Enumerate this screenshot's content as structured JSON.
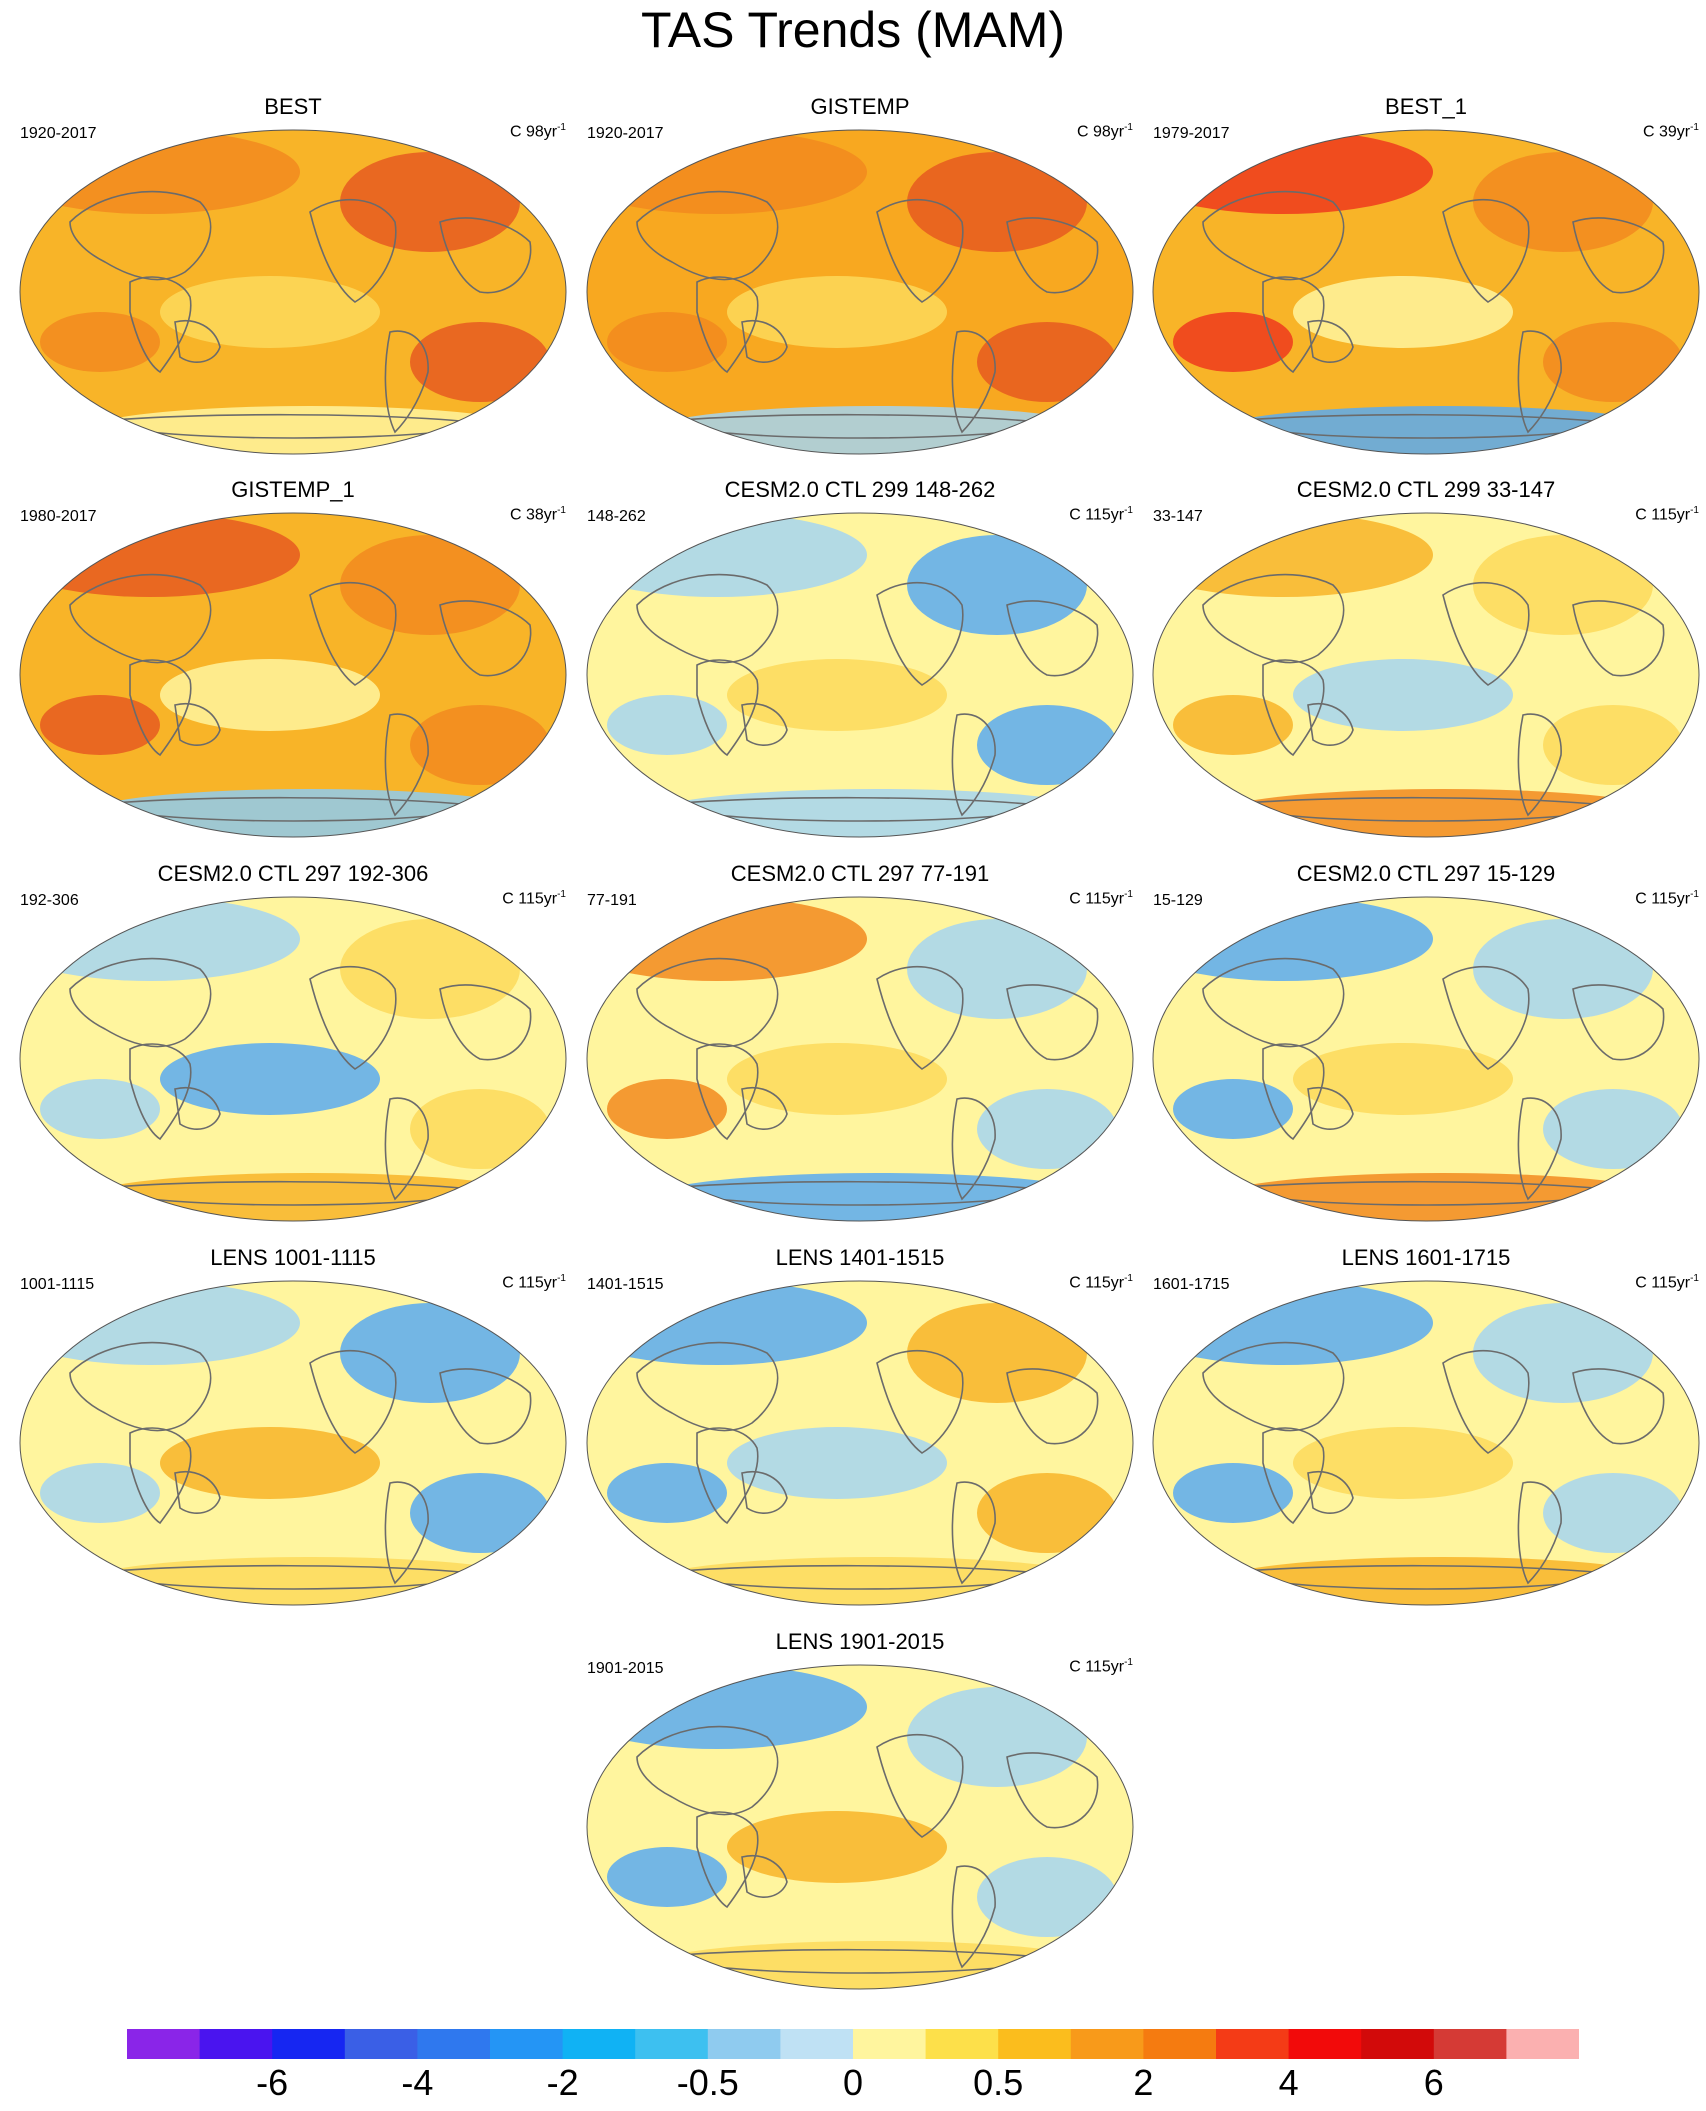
{
  "title": "TAS Trends (MAM)",
  "panels": [
    {
      "title": "BEST",
      "left_label": "1920-2017",
      "right_unit": "C 98yr",
      "right_exp": "-1",
      "fill": "#f8b428",
      "patches": [
        "#f28a1e",
        "#e65a20",
        "#fdd95a",
        "#fff59e"
      ]
    },
    {
      "title": "GISTEMP",
      "left_label": "1920-2017",
      "right_unit": "C 98yr",
      "right_exp": "-1",
      "fill": "#f8a820",
      "patches": [
        "#f28a1e",
        "#e65a20",
        "#fdd95a",
        "#a6d5f0"
      ]
    },
    {
      "title": "BEST_1",
      "left_label": "1979-2017",
      "right_unit": "C 39yr",
      "right_exp": "-1",
      "fill": "#f8b428",
      "patches": [
        "#ee3a1c",
        "#f28a1e",
        "#fff59e",
        "#5aaaf0"
      ]
    },
    {
      "title": "GISTEMP_1",
      "left_label": "1980-2017",
      "right_unit": "C 38yr",
      "right_exp": "-1",
      "fill": "#f8b428",
      "patches": [
        "#e65a20",
        "#f28a1e",
        "#fff59e",
        "#8fcbef"
      ]
    },
    {
      "title": "CESM2.0 CTL 299 148-262",
      "left_label": "148-262",
      "right_unit": "C 115yr",
      "right_exp": "-1",
      "fill": "#fff59e",
      "patches": [
        "#a6d5f0",
        "#5aaaf0",
        "#fdd95a",
        "#a6d5f0"
      ]
    },
    {
      "title": "CESM2.0 CTL 299 33-147",
      "left_label": "33-147",
      "right_unit": "C 115yr",
      "right_exp": "-1",
      "fill": "#fff59e",
      "patches": [
        "#f8b428",
        "#fdd95a",
        "#a6d5f0",
        "#f28a1e"
      ]
    },
    {
      "title": "CESM2.0 CTL 297 192-306",
      "left_label": "192-306",
      "right_unit": "C 115yr",
      "right_exp": "-1",
      "fill": "#fff59e",
      "patches": [
        "#a6d5f0",
        "#fdd95a",
        "#5aaaf0",
        "#f8b428"
      ]
    },
    {
      "title": "CESM2.0 CTL 297 77-191",
      "left_label": "77-191",
      "right_unit": "C 115yr",
      "right_exp": "-1",
      "fill": "#fff59e",
      "patches": [
        "#f28a1e",
        "#a6d5f0",
        "#fdd95a",
        "#5aaaf0"
      ]
    },
    {
      "title": "CESM2.0 CTL 297 15-129",
      "left_label": "15-129",
      "right_unit": "C 115yr",
      "right_exp": "-1",
      "fill": "#fff59e",
      "patches": [
        "#5aaaf0",
        "#a6d5f0",
        "#fdd95a",
        "#f28a1e"
      ]
    },
    {
      "title": "LENS 1001-1115",
      "left_label": "1001-1115",
      "right_unit": "C 115yr",
      "right_exp": "-1",
      "fill": "#fff59e",
      "patches": [
        "#a6d5f0",
        "#5aaaf0",
        "#f8b428",
        "#fdd95a"
      ]
    },
    {
      "title": "LENS 1401-1515",
      "left_label": "1401-1515",
      "right_unit": "C 115yr",
      "right_exp": "-1",
      "fill": "#fff59e",
      "patches": [
        "#5aaaf0",
        "#f8b428",
        "#a6d5f0",
        "#fdd95a"
      ]
    },
    {
      "title": "LENS 1601-1715",
      "left_label": "1601-1715",
      "right_unit": "C 115yr",
      "right_exp": "-1",
      "fill": "#fff59e",
      "patches": [
        "#5aaaf0",
        "#a6d5f0",
        "#fdd95a",
        "#f8b428"
      ]
    },
    {
      "title": "LENS 1901-2015",
      "left_label": "1901-2015",
      "right_unit": "C 115yr",
      "right_exp": "-1",
      "fill": "#fff59e",
      "patches": [
        "#5aaaf0",
        "#a6d5f0",
        "#f8b428",
        "#fdd95a"
      ]
    }
  ],
  "colorbar": {
    "colors": [
      "#8a25e8",
      "#4a14ef",
      "#1626f2",
      "#3a5fe6",
      "#2f78ee",
      "#2495f5",
      "#10b2f4",
      "#3dc0f0",
      "#8fcbef",
      "#bfe1f4",
      "#fff59e",
      "#fde04a",
      "#fbbd1d",
      "#f89a1a",
      "#f57b10",
      "#f43b16",
      "#f20a0a",
      "#d20a0a",
      "#d53a35",
      "#fbb0b0"
    ],
    "labels": [
      {
        "text": "-6",
        "index": 2
      },
      {
        "text": "-4",
        "index": 4
      },
      {
        "text": "-2",
        "index": 6
      },
      {
        "text": "-0.5",
        "index": 8
      },
      {
        "text": "0",
        "index": 10
      },
      {
        "text": "0.5",
        "index": 12
      },
      {
        "text": "2",
        "index": 14
      },
      {
        "text": "4",
        "index": 16
      },
      {
        "text": "6",
        "index": 18
      }
    ]
  }
}
